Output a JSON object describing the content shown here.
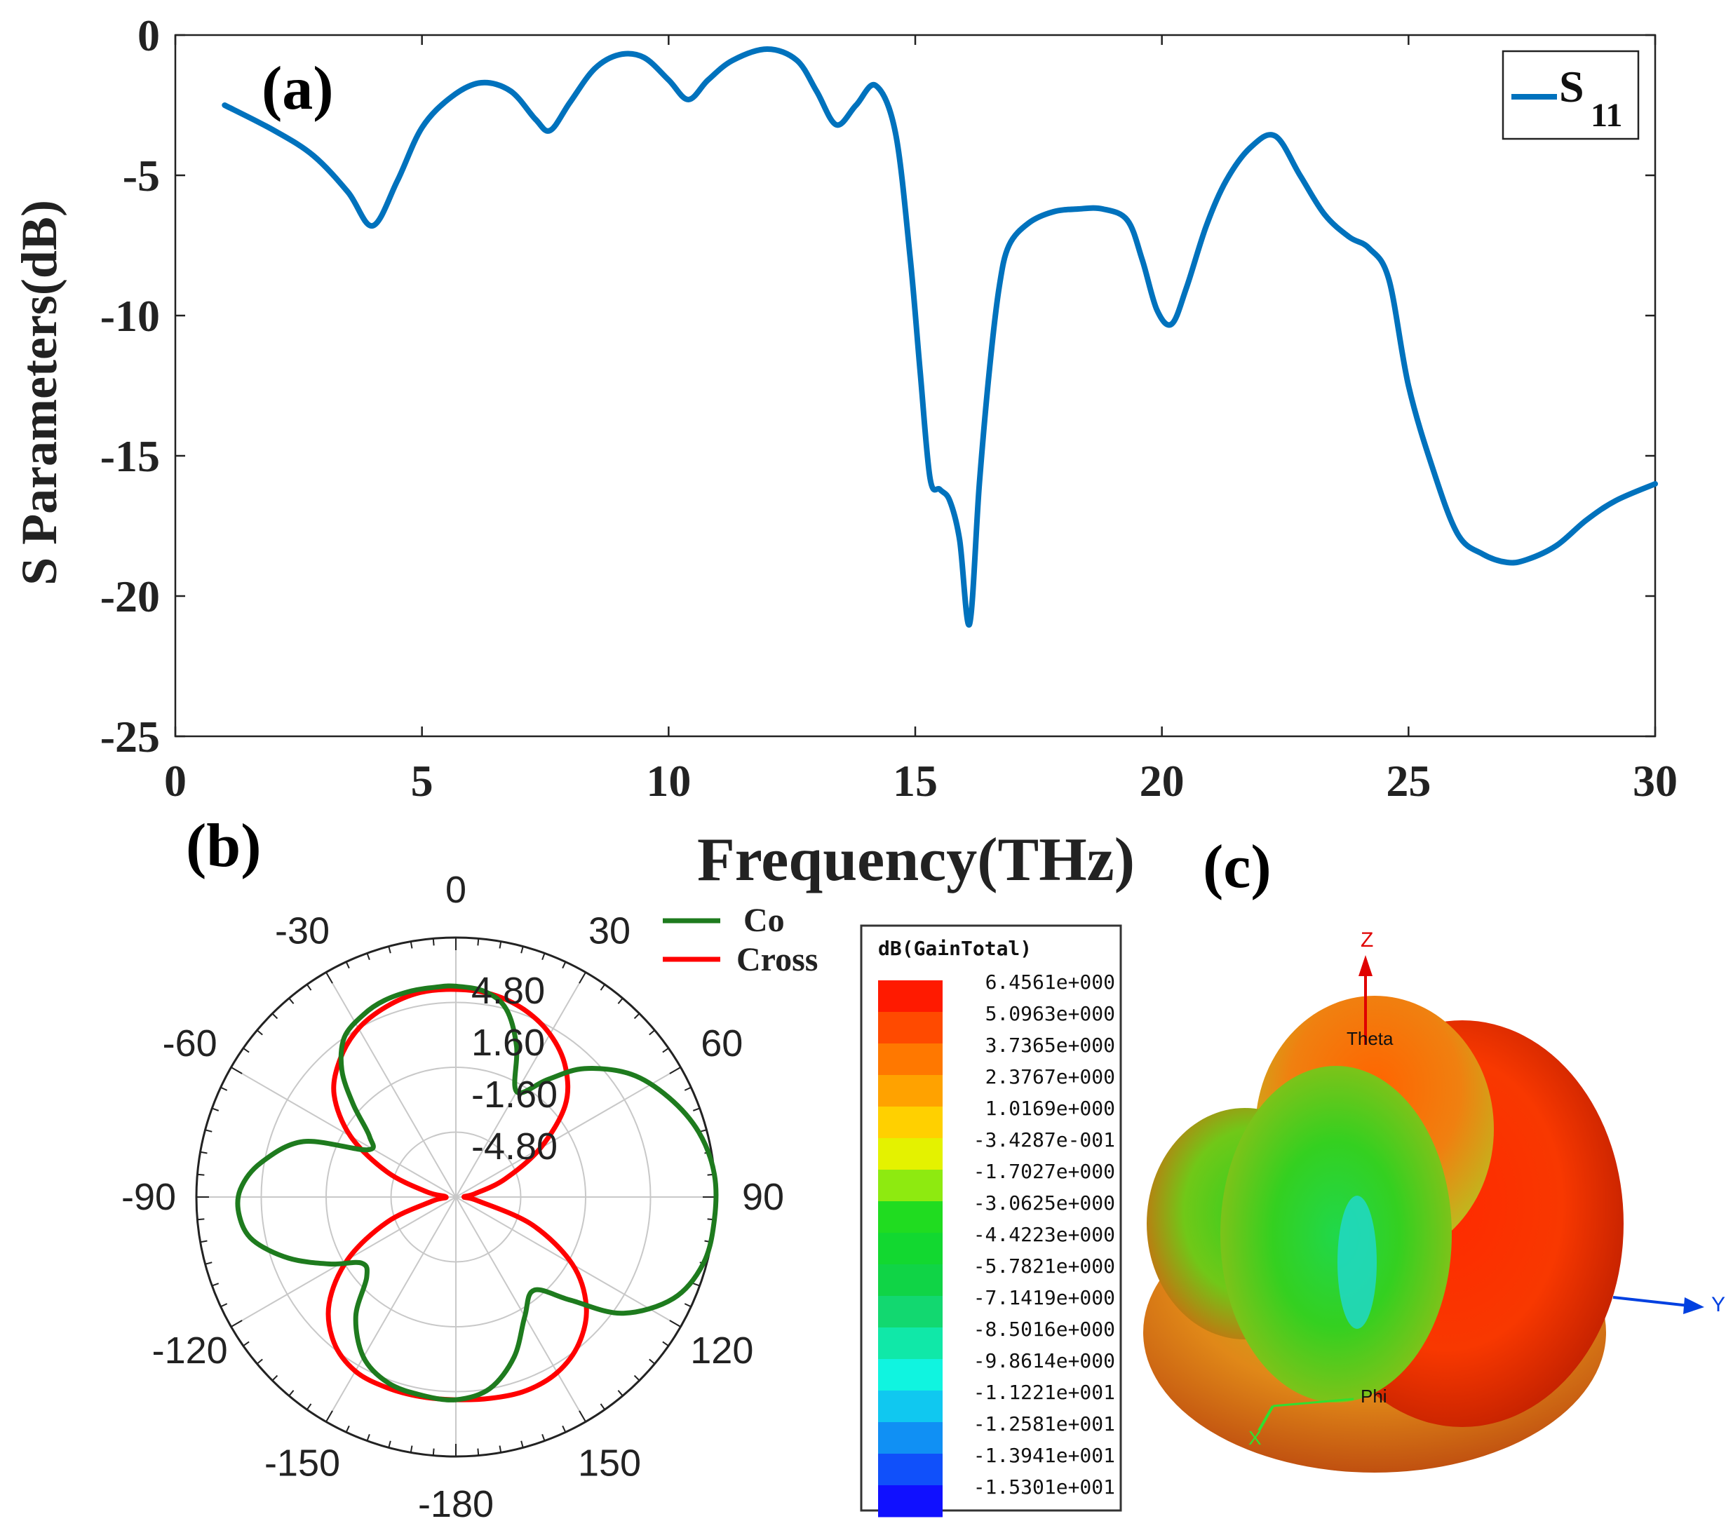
{
  "chart_data": [
    {
      "panel": "(a)",
      "type": "line",
      "xlabel": "Frequency(THz)",
      "ylabel": "S Parameters(dB)",
      "xlim": [
        0,
        30
      ],
      "ylim": [
        -25,
        0
      ],
      "x_ticks": [
        "0",
        "5",
        "10",
        "15",
        "20",
        "25",
        "30"
      ],
      "y_ticks": [
        "0",
        "-5",
        "-10",
        "-15",
        "-20",
        "-25"
      ],
      "legend": "top-right",
      "series": [
        {
          "name": "S",
          "name_sub": "11",
          "color": "#0072BD",
          "x": [
            1.0,
            2.0,
            2.8,
            3.5,
            4.0,
            4.5,
            5.0,
            5.6,
            6.2,
            6.8,
            7.3,
            7.6,
            8.0,
            8.5,
            9.0,
            9.5,
            10.0,
            10.4,
            10.8,
            11.3,
            12.0,
            12.6,
            13.0,
            13.4,
            13.8,
            14.2,
            14.6,
            14.9,
            15.1,
            15.3,
            15.5,
            15.7,
            15.9,
            16.1,
            16.3,
            16.5,
            16.7,
            16.9,
            17.3,
            17.8,
            18.3,
            18.8,
            19.3,
            19.6,
            19.9,
            20.2,
            20.5,
            20.9,
            21.3,
            21.8,
            22.3,
            22.8,
            23.3,
            23.8,
            24.2,
            24.6,
            25.0,
            25.5,
            26.0,
            26.5,
            27.0,
            27.4,
            28.0,
            28.6,
            29.2,
            30.0
          ],
          "values": [
            -2.5,
            -3.4,
            -4.3,
            -5.6,
            -6.8,
            -5.2,
            -3.3,
            -2.2,
            -1.7,
            -2.0,
            -3.0,
            -3.4,
            -2.4,
            -1.2,
            -0.7,
            -0.8,
            -1.6,
            -2.3,
            -1.6,
            -0.9,
            -0.5,
            -0.9,
            -2.0,
            -3.2,
            -2.5,
            -1.8,
            -3.5,
            -8.0,
            -12.0,
            -15.8,
            -16.2,
            -16.6,
            -18.0,
            -21.0,
            -16.0,
            -12.0,
            -9.0,
            -7.5,
            -6.7,
            -6.3,
            -6.2,
            -6.2,
            -6.6,
            -8.0,
            -9.8,
            -10.3,
            -9.0,
            -6.8,
            -5.2,
            -4.0,
            -3.6,
            -5.0,
            -6.4,
            -7.2,
            -7.6,
            -8.7,
            -12.5,
            -15.5,
            -17.8,
            -18.5,
            -18.8,
            -18.7,
            -18.2,
            -17.3,
            -16.6,
            -16.0
          ]
        }
      ]
    },
    {
      "panel": "(b)",
      "type": "polar",
      "angle_labels": [
        "0",
        "30",
        "60",
        "90",
        "120",
        "150",
        "-180",
        "-150",
        "-120",
        "-90",
        "-60",
        "-30"
      ],
      "radial_labels": [
        "4.80",
        "1.60",
        "-1.60",
        "-4.80"
      ],
      "rlim": [
        -8,
        8
      ],
      "legend": "top-right",
      "series": [
        {
          "name": "Co",
          "color": "#1E7B1E",
          "theta": [
            0,
            8,
            15,
            22,
            30,
            38,
            45,
            55,
            65,
            75,
            85,
            95,
            105,
            115,
            125,
            132,
            140,
            150,
            160,
            170,
            180,
            190,
            200,
            210,
            220,
            228,
            235,
            242,
            250,
            258,
            265,
            272,
            280,
            290,
            298,
            305,
            312,
            318,
            325,
            333,
            340,
            348,
            355,
            360
          ],
          "values": [
            5.0,
            4.8,
            4.0,
            2.0,
            -0.5,
            1.2,
            3.2,
            5.2,
            6.5,
            7.5,
            8.0,
            8.2,
            7.8,
            6.8,
            4.5,
            1.5,
            -0.5,
            0.5,
            2.5,
            4.0,
            4.5,
            4.4,
            4.2,
            3.4,
            1.6,
            -0.6,
            -0.9,
            0.8,
            3.0,
            4.8,
            5.4,
            5.3,
            4.2,
            2.0,
            -1.8,
            -1.5,
            0.5,
            2.5,
            4.0,
            4.6,
            4.9,
            5.0,
            5.0,
            5.0
          ]
        },
        {
          "name": "Cross",
          "color": "#FF0000",
          "theta": [
            0,
            10,
            20,
            30,
            40,
            50,
            60,
            70,
            80,
            90,
            100,
            110,
            120,
            130,
            140,
            150,
            160,
            170,
            180,
            190,
            200,
            210,
            220,
            230,
            240,
            250,
            260,
            270,
            280,
            290,
            300,
            310,
            320,
            330,
            340,
            350,
            360
          ],
          "values": [
            4.8,
            4.7,
            4.3,
            3.6,
            2.5,
            0.8,
            -2.0,
            -4.8,
            -6.8,
            -7.5,
            -6.6,
            -3.0,
            0.3,
            2.5,
            3.8,
            4.5,
            4.7,
            4.6,
            4.5,
            4.5,
            4.5,
            4.4,
            3.7,
            2.2,
            -0.3,
            -3.5,
            -6.5,
            -7.4,
            -6.2,
            -3.5,
            -0.5,
            1.8,
            3.1,
            4.0,
            4.5,
            4.8,
            4.8
          ]
        }
      ]
    },
    {
      "panel": "(c)",
      "type": "heatmap",
      "colorbar_title": "dB(GainTotal)",
      "colorbar_labels": [
        "6.4561e+000",
        "5.0963e+000",
        "3.7365e+000",
        "2.3767e+000",
        "1.0169e+000",
        "-3.4287e-001",
        "-1.7027e+000",
        "-3.0625e+000",
        "-4.4223e+000",
        "-5.7821e+000",
        "-7.1419e+000",
        "-8.5016e+000",
        "-9.8614e+000",
        "-1.1221e+001",
        "-1.2581e+001",
        "-1.3941e+001",
        "-1.5301e+001"
      ],
      "colorbar_colors": [
        "#FF1A00",
        "#FF4A00",
        "#FF7800",
        "#FFA200",
        "#FFD000",
        "#E4F200",
        "#8EEA10",
        "#20DC20",
        "#12D830",
        "#10D446",
        "#12D870",
        "#10E8A8",
        "#10F4E0",
        "#10C8F0",
        "#1090F4",
        "#1050FA",
        "#1010FF"
      ],
      "axis_labels": [
        "Z",
        "Theta",
        "Y",
        "Phi",
        "X"
      ]
    }
  ]
}
